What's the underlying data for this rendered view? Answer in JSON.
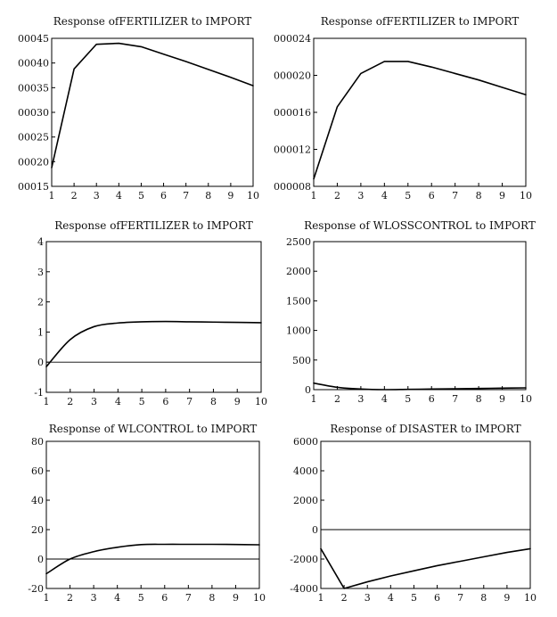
{
  "chart_data": [
    {
      "type": "line",
      "title": "Response ofFERTILIZER to IMPORT",
      "x": [
        1,
        2,
        3,
        4,
        5,
        6,
        7,
        8,
        9,
        10
      ],
      "x_tick_labels": [
        "1",
        "2",
        "3",
        "4",
        "5",
        "6",
        "7",
        "8",
        "9",
        "10"
      ],
      "y_tick_labels": [
        "00015",
        "00020",
        "00025",
        "00030",
        "00035",
        "00040",
        "00045"
      ],
      "y_ticks": [
        0.00015,
        0.0002,
        0.00025,
        0.0003,
        0.00035,
        0.0004,
        0.00045
      ],
      "ylim": [
        0.00015,
        0.00045
      ],
      "zero_line": false,
      "smooth": false,
      "series": [
        {
          "values": [
            0.000188,
            0.000388,
            0.000438,
            0.00044,
            0.000433,
            0.000418,
            0.000403,
            0.000387,
            0.000371,
            0.000354
          ]
        }
      ]
    },
    {
      "type": "line",
      "title": "Response ofFERTILIZER to IMPORT",
      "x": [
        1,
        2,
        3,
        4,
        5,
        6,
        7,
        8,
        9,
        10
      ],
      "x_tick_labels": [
        "1",
        "2",
        "3",
        "4",
        "5",
        "6",
        "7",
        "8",
        "9",
        "10"
      ],
      "y_tick_labels": [
        "000008",
        "000012",
        "000016",
        "000020",
        "000024"
      ],
      "y_ticks": [
        8e-06,
        1.2e-05,
        1.6e-05,
        2e-05,
        2.4e-05
      ],
      "ylim": [
        8e-06,
        2.4e-05
      ],
      "zero_line": false,
      "smooth": false,
      "series": [
        {
          "values": [
            8.8e-06,
            1.66e-05,
            2.02e-05,
            2.15e-05,
            2.15e-05,
            2.09e-05,
            2.02e-05,
            1.95e-05,
            1.87e-05,
            1.79e-05
          ]
        }
      ]
    },
    {
      "type": "line",
      "title": "Response ofFERTILIZER to IMPORT",
      "x": [
        1,
        2,
        3,
        4,
        5,
        6,
        7,
        8,
        9,
        10
      ],
      "x_tick_labels": [
        "1",
        "2",
        "3",
        "4",
        "5",
        "6",
        "7",
        "8",
        "9",
        "10"
      ],
      "y_tick_labels": [
        "-1",
        "0",
        "1",
        "2",
        "3",
        "4"
      ],
      "y_ticks": [
        -1,
        0,
        1,
        2,
        3,
        4
      ],
      "ylim": [
        -1,
        4
      ],
      "zero_line": true,
      "smooth": true,
      "series": [
        {
          "values": [
            -0.15,
            0.75,
            1.18,
            1.3,
            1.34,
            1.35,
            1.34,
            1.33,
            1.32,
            1.31
          ]
        }
      ]
    },
    {
      "type": "line",
      "title": "Response of WLOSSCONTROL to IMPORT",
      "x": [
        1,
        2,
        3,
        4,
        5,
        6,
        7,
        8,
        9,
        10
      ],
      "x_tick_labels": [
        "1",
        "2",
        "3",
        "4",
        "5",
        "6",
        "7",
        "8",
        "9",
        "10"
      ],
      "y_tick_labels": [
        "0",
        "500",
        "1000",
        "1500",
        "2000",
        "2500"
      ],
      "y_ticks": [
        0,
        500,
        1000,
        1500,
        2000,
        2500
      ],
      "ylim": [
        0,
        2500
      ],
      "zero_line": false,
      "smooth": true,
      "series": [
        {
          "values": [
            110,
            40,
            10,
            0,
            5,
            10,
            15,
            20,
            25,
            30
          ]
        }
      ]
    },
    {
      "type": "line",
      "title": "Response of WLCONTROL to IMPORT",
      "x": [
        1,
        2,
        3,
        4,
        5,
        6,
        7,
        8,
        9,
        10
      ],
      "x_tick_labels": [
        "1",
        "2",
        "3",
        "4",
        "5",
        "6",
        "7",
        "8",
        "9",
        "10"
      ],
      "y_tick_labels": [
        "-20",
        "0",
        "20",
        "40",
        "60",
        "80"
      ],
      "y_ticks": [
        -20,
        0,
        20,
        40,
        60,
        80
      ],
      "ylim": [
        -20,
        80
      ],
      "zero_line": true,
      "smooth": true,
      "series": [
        {
          "values": [
            -10,
            0,
            5,
            8,
            9.8,
            10,
            10,
            10,
            9.9,
            9.7
          ]
        }
      ]
    },
    {
      "type": "line",
      "title": "Response of DISASTER to IMPORT",
      "x": [
        1,
        2,
        3,
        4,
        5,
        6,
        7,
        8,
        9,
        10
      ],
      "x_tick_labels": [
        "1",
        "2",
        "3",
        "4",
        "5",
        "6",
        "7",
        "8",
        "9",
        "10"
      ],
      "y_tick_labels": [
        "-4000",
        "-2000",
        "0",
        "2000",
        "4000",
        "6000"
      ],
      "y_ticks": [
        -4000,
        -2000,
        0,
        2000,
        4000,
        6000
      ],
      "ylim": [
        -4000,
        6000
      ],
      "zero_line": true,
      "smooth": false,
      "series": [
        {
          "values": [
            -1300,
            -4000,
            -3550,
            -3150,
            -2800,
            -2450,
            -2150,
            -1850,
            -1550,
            -1300
          ]
        }
      ]
    }
  ]
}
